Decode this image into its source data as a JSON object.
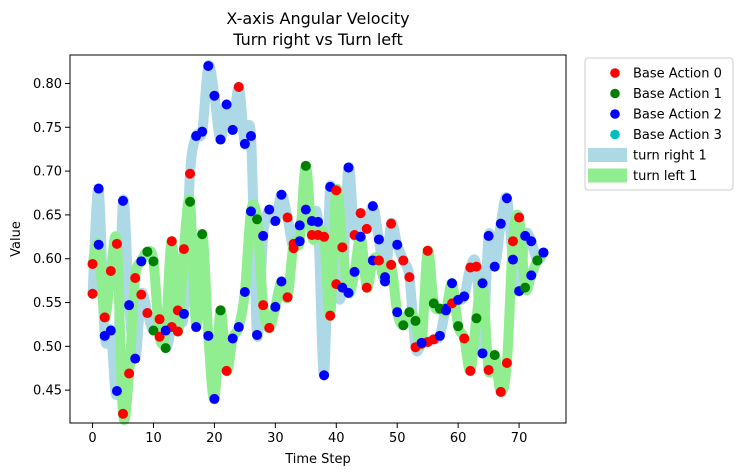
{
  "chart_data": {
    "type": "scatter",
    "title": "X-axis Angular Velocity",
    "subtitle": "Turn right vs Turn left",
    "xlabel": "Time Step",
    "ylabel": "Value",
    "xlim": [
      -3.7,
      77.7
    ],
    "ylim": [
      0.4125,
      0.8325
    ],
    "xticks": [
      0,
      10,
      20,
      30,
      40,
      50,
      60,
      70
    ],
    "yticks": [
      0.45,
      0.5,
      0.55,
      0.6,
      0.65,
      0.7,
      0.75,
      0.8
    ],
    "ytick_labels": [
      "0.45",
      "0.50",
      "0.55",
      "0.60",
      "0.65",
      "0.70",
      "0.75",
      "0.80"
    ],
    "grid": false,
    "legend_position": "outside-right",
    "legend": [
      {
        "label": "Base Action 0",
        "kind": "marker",
        "color": "#ff0000"
      },
      {
        "label": "Base Action 1",
        "kind": "marker",
        "color": "#008000"
      },
      {
        "label": "Base Action 2",
        "kind": "marker",
        "color": "#0000ff"
      },
      {
        "label": "Base Action 3",
        "kind": "marker",
        "color": "#00bfbf"
      },
      {
        "label": "turn right 1",
        "kind": "line",
        "color": "#add8e6"
      },
      {
        "label": "turn left 1",
        "kind": "line",
        "color": "#90ee90"
      }
    ],
    "series": [
      {
        "name": "turn right 1",
        "color": "#add8e6",
        "points": [
          [
            0,
            0.56,
            0
          ],
          [
            1,
            0.68,
            2
          ],
          [
            2,
            0.512,
            2
          ],
          [
            3,
            0.518,
            2
          ],
          [
            4,
            0.449,
            2
          ],
          [
            5,
            0.666,
            2
          ],
          [
            6,
            0.547,
            2
          ],
          [
            7,
            0.486,
            2
          ],
          [
            8,
            0.559,
            0
          ],
          [
            9,
            0.538,
            0
          ],
          [
            10,
            0.518,
            1
          ],
          [
            11,
            0.531,
            0
          ],
          [
            12,
            0.498,
            1
          ],
          [
            13,
            0.522,
            0
          ],
          [
            14,
            0.541,
            0
          ],
          [
            15,
            0.537,
            2
          ],
          [
            16,
            0.697,
            0
          ],
          [
            17,
            0.74,
            2
          ],
          [
            18,
            0.745,
            2
          ],
          [
            19,
            0.82,
            2
          ],
          [
            20,
            0.786,
            2
          ],
          [
            21,
            0.736,
            2
          ],
          [
            22,
            0.776,
            2
          ],
          [
            23,
            0.747,
            2
          ],
          [
            24,
            0.796,
            0
          ],
          [
            25,
            0.731,
            2
          ],
          [
            26,
            0.74,
            2
          ],
          [
            27,
            0.513,
            2
          ],
          [
            28,
            0.626,
            2
          ],
          [
            29,
            0.656,
            2
          ],
          [
            30,
            0.643,
            2
          ],
          [
            31,
            0.673,
            2
          ],
          [
            32,
            0.647,
            0
          ],
          [
            33,
            0.612,
            0
          ],
          [
            34,
            0.638,
            2
          ],
          [
            35,
            0.656,
            2
          ],
          [
            36,
            0.643,
            2
          ],
          [
            37,
            0.642,
            2
          ],
          [
            38,
            0.467,
            2
          ],
          [
            39,
            0.682,
            2
          ],
          [
            40,
            0.571,
            0
          ],
          [
            41,
            0.567,
            2
          ],
          [
            42,
            0.704,
            2
          ],
          [
            43,
            0.627,
            0
          ],
          [
            44,
            0.652,
            0
          ],
          [
            45,
            0.634,
            0
          ],
          [
            46,
            0.66,
            2
          ],
          [
            47,
            0.622,
            2
          ],
          [
            48,
            0.579,
            2
          ],
          [
            49,
            0.64,
            0
          ],
          [
            50,
            0.616,
            2
          ],
          [
            51,
            0.598,
            0
          ],
          [
            52,
            0.579,
            0
          ],
          [
            53,
            0.499,
            0
          ],
          [
            54,
            0.503,
            0
          ],
          [
            55,
            0.505,
            0
          ],
          [
            56,
            0.508,
            0
          ],
          [
            57,
            0.512,
            2
          ],
          [
            58,
            0.543,
            2
          ],
          [
            59,
            0.549,
            0
          ],
          [
            60,
            0.553,
            2
          ],
          [
            61,
            0.557,
            2
          ],
          [
            62,
            0.59,
            0
          ],
          [
            63,
            0.591,
            0
          ],
          [
            64,
            0.492,
            2
          ],
          [
            65,
            0.626,
            2
          ],
          [
            66,
            0.591,
            2
          ],
          [
            67,
            0.64,
            2
          ],
          [
            68,
            0.669,
            2
          ],
          [
            69,
            0.599,
            2
          ],
          [
            70,
            0.563,
            2
          ],
          [
            71,
            0.626,
            2
          ],
          [
            72,
            0.62,
            2
          ],
          [
            73,
            0.598,
            1
          ],
          [
            74,
            0.607,
            2
          ]
        ]
      },
      {
        "name": "turn left 1",
        "color": "#90ee90",
        "points": [
          [
            0,
            0.594,
            0
          ],
          [
            1,
            0.616,
            2
          ],
          [
            2,
            0.533,
            0
          ],
          [
            3,
            0.586,
            0
          ],
          [
            4,
            0.617,
            0
          ],
          [
            5,
            0.423,
            0
          ],
          [
            6,
            0.469,
            0
          ],
          [
            7,
            0.578,
            0
          ],
          [
            8,
            0.597,
            2
          ],
          [
            9,
            0.608,
            1
          ],
          [
            10,
            0.597,
            1
          ],
          [
            11,
            0.511,
            0
          ],
          [
            12,
            0.518,
            2
          ],
          [
            13,
            0.62,
            0
          ],
          [
            14,
            0.517,
            0
          ],
          [
            15,
            0.611,
            0
          ],
          [
            16,
            0.665,
            1
          ],
          [
            17,
            0.522,
            2
          ],
          [
            18,
            0.628,
            1
          ],
          [
            19,
            0.512,
            2
          ],
          [
            20,
            0.44,
            2
          ],
          [
            21,
            0.541,
            1
          ],
          [
            22,
            0.472,
            0
          ],
          [
            23,
            0.509,
            2
          ],
          [
            24,
            0.522,
            2
          ],
          [
            25,
            0.562,
            2
          ],
          [
            26,
            0.654,
            2
          ],
          [
            27,
            0.645,
            1
          ],
          [
            28,
            0.547,
            0
          ],
          [
            29,
            0.521,
            0
          ],
          [
            30,
            0.545,
            2
          ],
          [
            31,
            0.574,
            2
          ],
          [
            32,
            0.556,
            0
          ],
          [
            33,
            0.617,
            0
          ],
          [
            34,
            0.62,
            2
          ],
          [
            35,
            0.706,
            1
          ],
          [
            36,
            0.627,
            0
          ],
          [
            37,
            0.627,
            0
          ],
          [
            38,
            0.625,
            0
          ],
          [
            39,
            0.535,
            0
          ],
          [
            40,
            0.678,
            0
          ],
          [
            41,
            0.613,
            0
          ],
          [
            42,
            0.561,
            2
          ],
          [
            43,
            0.585,
            2
          ],
          [
            44,
            0.625,
            2
          ],
          [
            45,
            0.567,
            0
          ],
          [
            46,
            0.598,
            2
          ],
          [
            47,
            0.598,
            0
          ],
          [
            48,
            0.574,
            2
          ],
          [
            49,
            0.593,
            0
          ],
          [
            50,
            0.539,
            2
          ],
          [
            51,
            0.524,
            1
          ],
          [
            52,
            0.539,
            1
          ],
          [
            53,
            0.529,
            1
          ],
          [
            54,
            0.504,
            2
          ],
          [
            55,
            0.609,
            0
          ],
          [
            56,
            0.549,
            1
          ],
          [
            57,
            0.543,
            1
          ],
          [
            58,
            0.541,
            2
          ],
          [
            59,
            0.572,
            2
          ],
          [
            60,
            0.523,
            1
          ],
          [
            61,
            0.509,
            0
          ],
          [
            62,
            0.472,
            0
          ],
          [
            63,
            0.532,
            1
          ],
          [
            64,
            0.572,
            2
          ],
          [
            65,
            0.473,
            0
          ],
          [
            66,
            0.49,
            1
          ],
          [
            67,
            0.448,
            0
          ],
          [
            68,
            0.481,
            0
          ],
          [
            69,
            0.62,
            0
          ],
          [
            70,
            0.647,
            0
          ],
          [
            71,
            0.567,
            1
          ],
          [
            72,
            0.581,
            2
          ],
          [
            73,
            0.598,
            1
          ],
          [
            74,
            0.607,
            2
          ]
        ]
      }
    ],
    "action_colors": [
      "#ff0000",
      "#008000",
      "#0000ff",
      "#00bfbf"
    ]
  }
}
